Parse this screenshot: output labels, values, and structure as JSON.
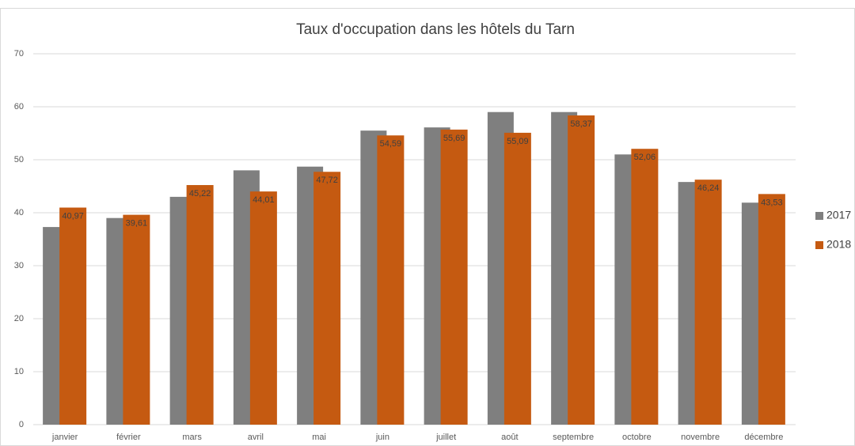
{
  "chart_data": {
    "type": "bar",
    "title": "Taux d'occupation dans les hôtels du Tarn",
    "categories": [
      "janvier",
      "février",
      "mars",
      "avril",
      "mai",
      "juin",
      "juillet",
      "août",
      "septembre",
      "octobre",
      "novembre",
      "décembre"
    ],
    "series": [
      {
        "name": "2017",
        "color": "#7f7f7f",
        "values": [
          37.3,
          39,
          43,
          48,
          48.7,
          55.5,
          56.1,
          59,
          59,
          51,
          45.8,
          41.9
        ]
      },
      {
        "name": "2018",
        "color": "#c55a11",
        "values": [
          40.97,
          39.61,
          45.22,
          44.01,
          47.72,
          54.59,
          55.69,
          55.09,
          58.37,
          52.06,
          46.24,
          43.53
        ],
        "value_labels": [
          "40,97",
          "39,61",
          "45,22",
          "44,01",
          "47,72",
          "54,59",
          "55,69",
          "55,09",
          "58,37",
          "52,06",
          "46,24",
          "43,53"
        ]
      }
    ],
    "ylim": [
      0,
      70
    ],
    "yticks": [
      0,
      10,
      20,
      30,
      40,
      50,
      60,
      70
    ],
    "grid": true,
    "legend": "right"
  }
}
